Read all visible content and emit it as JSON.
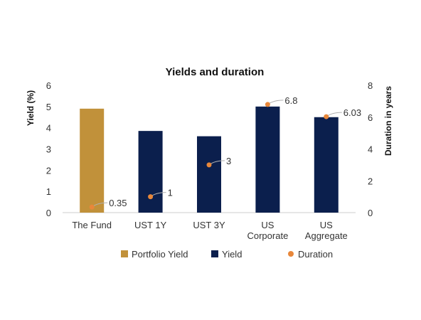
{
  "chart_data": {
    "type": "bar",
    "title": "Yields and duration",
    "categories": [
      [
        "The Fund"
      ],
      [
        "UST 1Y"
      ],
      [
        "UST 3Y"
      ],
      [
        "US",
        "Corporate"
      ],
      [
        "US",
        "Aggregate"
      ]
    ],
    "ylabel": "Yield (%)",
    "y2label": "Duration in years",
    "ylim": [
      0,
      6
    ],
    "y2lim": [
      0,
      8
    ],
    "yticks": [
      0,
      1,
      2,
      3,
      4,
      5,
      6
    ],
    "y2ticks": [
      0,
      2,
      4,
      6,
      8
    ],
    "series": [
      {
        "name": "Portfolio Yield",
        "type": "bar",
        "axis": "left",
        "color": "#C1913A",
        "values": [
          4.9,
          null,
          null,
          null,
          null
        ]
      },
      {
        "name": "Yield",
        "type": "bar",
        "axis": "left",
        "color": "#0B1F4D",
        "values": [
          null,
          3.85,
          3.6,
          5.0,
          4.5
        ]
      },
      {
        "name": "Duration",
        "type": "scatter",
        "axis": "right",
        "color": "#E8873A",
        "values": [
          0.35,
          1,
          3,
          6.8,
          6.03
        ],
        "labels": [
          "0.35",
          "1",
          "3",
          "6.8",
          "6.03"
        ]
      }
    ],
    "legend": {
      "position": "bottom",
      "items": [
        "Portfolio Yield",
        "Yield",
        "Duration"
      ]
    },
    "grid": false
  }
}
